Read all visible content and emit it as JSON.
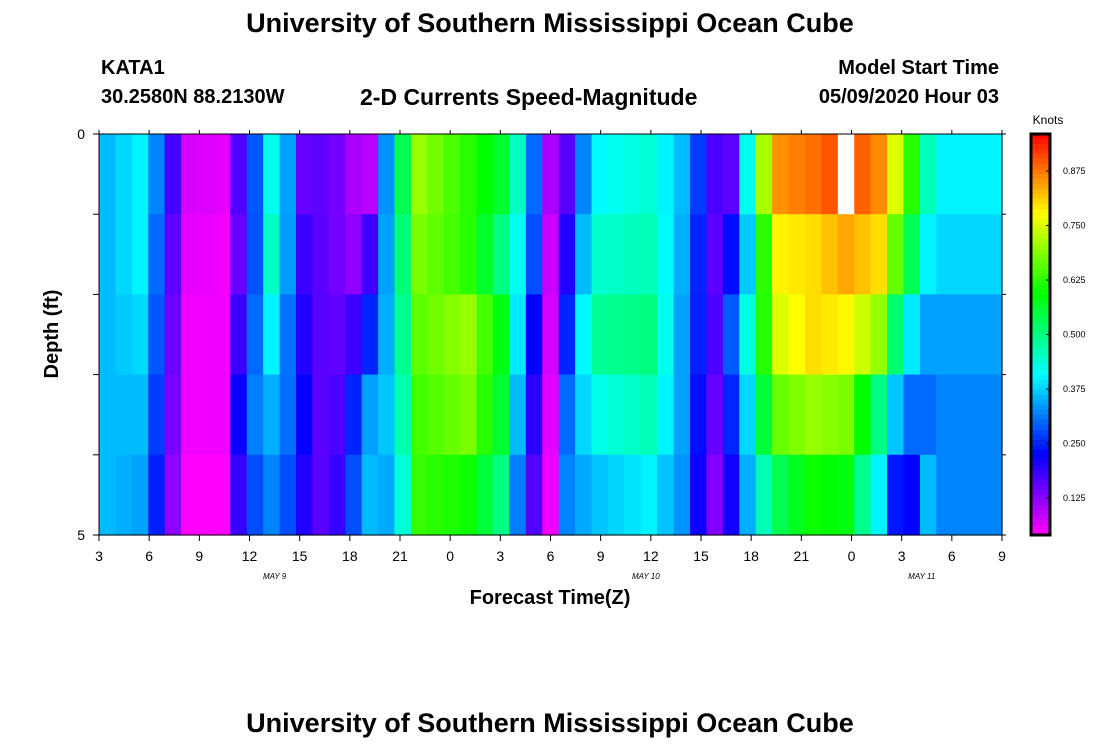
{
  "title": "University of Southern Mississippi Ocean Cube",
  "footer_title": "University of Southern Mississippi Ocean Cube",
  "station": {
    "id": "KATA1",
    "coords": "30.2580N 88.2130W"
  },
  "subtitle": "2-D Currents Speed-Magnitude",
  "model_start": {
    "label": "Model Start Time",
    "value": "05/09/2020 Hour 03"
  },
  "chart_data": {
    "type": "heatmap",
    "title": "2-D Currents Speed-Magnitude",
    "xlabel": "Forecast Time(Z)",
    "ylabel": "Depth (ft)",
    "x_ticks": [
      "3",
      "6",
      "9",
      "12",
      "15",
      "18",
      "21",
      "0",
      "3",
      "6",
      "9",
      "12",
      "15",
      "18",
      "21",
      "0",
      "3",
      "6",
      "9"
    ],
    "date_labels": [
      {
        "label": "MAY 9",
        "after_tick": 3.5
      },
      {
        "label": "MAY 10",
        "after_tick": 10.9
      },
      {
        "label": "MAY 11",
        "after_tick": 16.4
      }
    ],
    "y_ticks": [
      "0",
      "5"
    ],
    "ylim": [
      0,
      5
    ],
    "colorbar": {
      "label": "Knots",
      "ticks": [
        "0.125",
        "0.250",
        "0.375",
        "0.500",
        "0.625",
        "0.750",
        "0.875"
      ],
      "range": [
        0.04,
        0.96
      ]
    },
    "depth_layers": 5,
    "hours_per_step": 1,
    "anchors": [
      {
        "h": 0,
        "v": [
          0.36,
          0.36,
          0.36,
          0.36,
          0.36
        ]
      },
      {
        "h": 2,
        "v": [
          0.4,
          0.4,
          0.38,
          0.36,
          0.34
        ]
      },
      {
        "h": 3.5,
        "v": [
          0.28,
          0.25,
          0.24,
          0.22,
          0.2
        ]
      },
      {
        "h": 4.5,
        "v": [
          0.07,
          0.06,
          0.05,
          0.05,
          0.04
        ]
      },
      {
        "h": 7,
        "v": [
          0.06,
          0.05,
          0.05,
          0.05,
          0.04
        ]
      },
      {
        "h": 8.5,
        "v": [
          0.22,
          0.2,
          0.25,
          0.3,
          0.26
        ]
      },
      {
        "h": 10,
        "v": [
          0.42,
          0.45,
          0.4,
          0.35,
          0.32
        ]
      },
      {
        "h": 11.5,
        "v": [
          0.3,
          0.28,
          0.26,
          0.28,
          0.26
        ]
      },
      {
        "h": 12,
        "v": [
          0.15,
          0.18,
          0.2,
          0.22,
          0.2
        ]
      },
      {
        "h": 13.5,
        "v": [
          0.16,
          0.15,
          0.14,
          0.13,
          0.14
        ]
      },
      {
        "h": 15,
        "v": [
          0.1,
          0.12,
          0.18,
          0.25,
          0.28
        ]
      },
      {
        "h": 16,
        "v": [
          0.09,
          0.18,
          0.25,
          0.34,
          0.36
        ]
      },
      {
        "h": 17.5,
        "v": [
          0.45,
          0.42,
          0.4,
          0.38,
          0.34
        ]
      },
      {
        "h": 19,
        "v": [
          0.7,
          0.68,
          0.66,
          0.64,
          0.63
        ]
      },
      {
        "h": 22,
        "v": [
          0.62,
          0.62,
          0.7,
          0.68,
          0.6
        ]
      },
      {
        "h": 24,
        "v": [
          0.56,
          0.5,
          0.58,
          0.56,
          0.5
        ]
      },
      {
        "h": 25.5,
        "v": [
          0.4,
          0.38,
          0.3,
          0.26,
          0.22
        ]
      },
      {
        "h": 27,
        "v": [
          0.1,
          0.08,
          0.07,
          0.06,
          0.05
        ]
      },
      {
        "h": 28,
        "v": [
          0.16,
          0.2,
          0.25,
          0.3,
          0.32
        ]
      },
      {
        "h": 29.5,
        "v": [
          0.4,
          0.44,
          0.48,
          0.42,
          0.36
        ]
      },
      {
        "h": 33,
        "v": [
          0.44,
          0.46,
          0.5,
          0.46,
          0.4
        ]
      },
      {
        "h": 35,
        "v": [
          0.36,
          0.35,
          0.34,
          0.34,
          0.33
        ]
      },
      {
        "h": 36.5,
        "v": [
          0.22,
          0.2,
          0.2,
          0.18,
          0.16
        ]
      },
      {
        "h": 37.5,
        "v": [
          0.12,
          0.12,
          0.14,
          0.12,
          0.1
        ]
      },
      {
        "h": 38.3,
        "v": [
          0.18,
          0.3,
          0.38,
          0.33,
          0.28
        ]
      },
      {
        "h": 39.3,
        "v": [
          0.52,
          0.4,
          0.45,
          0.4,
          0.38
        ]
      },
      {
        "h": 40.5,
        "v": [
          0.85,
          0.78,
          0.74,
          0.66,
          0.52
        ]
      },
      {
        "h": 43,
        "v": [
          0.88,
          0.8,
          0.8,
          0.7,
          0.6
        ]
      },
      {
        "h": 45,
        "v": [
          0.92,
          0.84,
          0.78,
          0.68,
          0.58
        ]
      },
      {
        "h": 47,
        "v": [
          0.86,
          0.8,
          0.7,
          0.5,
          0.4
        ]
      },
      {
        "h": 48.5,
        "v": [
          0.7,
          0.6,
          0.42,
          0.3,
          0.16
        ]
      },
      {
        "h": 50,
        "v": [
          0.46,
          0.4,
          0.34,
          0.3,
          0.36
        ]
      },
      {
        "h": 51,
        "v": [
          0.4,
          0.38,
          0.34,
          0.32,
          0.32
        ]
      }
    ],
    "missing_cells": [
      {
        "h": 45,
        "layer": 0
      }
    ]
  }
}
